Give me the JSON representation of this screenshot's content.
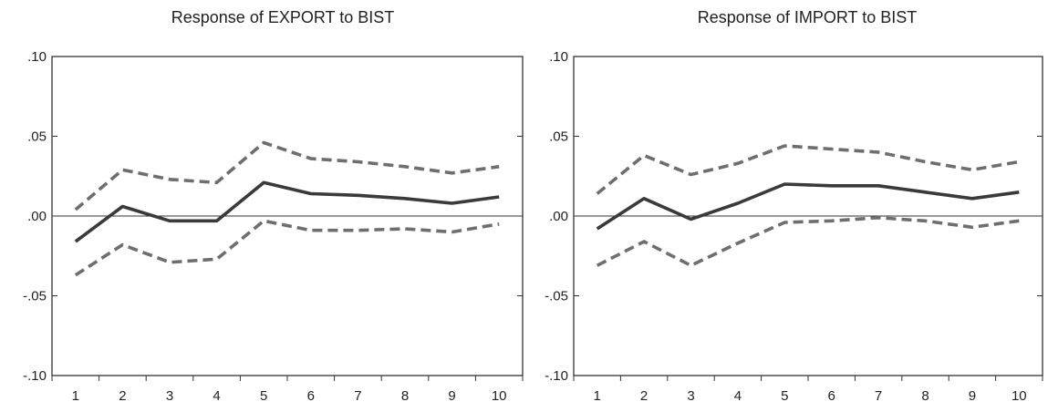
{
  "chart_data": [
    {
      "type": "line",
      "title": "Response of EXPORT to BIST",
      "xlabel": "",
      "ylabel": "",
      "x": [
        1,
        2,
        3,
        4,
        5,
        6,
        7,
        8,
        9,
        10
      ],
      "x_tick_labels": [
        "1",
        "2",
        "3",
        "4",
        "5",
        "6",
        "7",
        "8",
        "9",
        "10"
      ],
      "y_tick_labels": [
        ".10",
        ".05",
        ".00",
        "-.05",
        "-.10"
      ],
      "y_ticks": [
        0.1,
        0.05,
        0.0,
        -0.05,
        -0.1
      ],
      "ylim": [
        -0.1,
        0.1
      ],
      "grid": false,
      "zero_line": true,
      "series": [
        {
          "role": "response",
          "style": "solid",
          "color": "#3a3a3a",
          "values": [
            -0.016,
            0.006,
            -0.003,
            -0.003,
            0.021,
            0.014,
            0.013,
            0.011,
            0.008,
            0.012
          ]
        },
        {
          "role": "upper-band",
          "style": "dashed",
          "color": "#6e6e6e",
          "values": [
            0.004,
            0.029,
            0.023,
            0.021,
            0.046,
            0.036,
            0.034,
            0.031,
            0.027,
            0.031
          ]
        },
        {
          "role": "lower-band",
          "style": "dashed",
          "color": "#6e6e6e",
          "values": [
            -0.037,
            -0.018,
            -0.029,
            -0.027,
            -0.003,
            -0.009,
            -0.009,
            -0.008,
            -0.01,
            -0.005
          ]
        }
      ]
    },
    {
      "type": "line",
      "title": "Response of IMPORT to BIST",
      "xlabel": "",
      "ylabel": "",
      "x": [
        1,
        2,
        3,
        4,
        5,
        6,
        7,
        8,
        9,
        10
      ],
      "x_tick_labels": [
        "1",
        "2",
        "3",
        "4",
        "5",
        "6",
        "7",
        "8",
        "9",
        "10"
      ],
      "y_tick_labels": [
        ".10",
        ".05",
        ".00",
        "-.05",
        "-.10"
      ],
      "y_ticks": [
        0.1,
        0.05,
        0.0,
        -0.05,
        -0.1
      ],
      "ylim": [
        -0.1,
        0.1
      ],
      "grid": false,
      "zero_line": true,
      "series": [
        {
          "role": "response",
          "style": "solid",
          "color": "#3a3a3a",
          "values": [
            -0.008,
            0.011,
            -0.002,
            0.008,
            0.02,
            0.019,
            0.019,
            0.015,
            0.011,
            0.015
          ]
        },
        {
          "role": "upper-band",
          "style": "dashed",
          "color": "#6e6e6e",
          "values": [
            0.014,
            0.038,
            0.026,
            0.033,
            0.044,
            0.042,
            0.04,
            0.034,
            0.029,
            0.034
          ]
        },
        {
          "role": "lower-band",
          "style": "dashed",
          "color": "#6e6e6e",
          "values": [
            -0.031,
            -0.016,
            -0.031,
            -0.017,
            -0.004,
            -0.003,
            -0.001,
            -0.003,
            -0.007,
            -0.003
          ]
        }
      ]
    }
  ]
}
